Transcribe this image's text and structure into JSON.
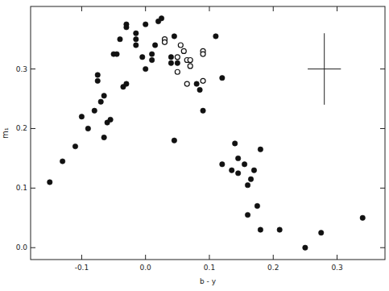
{
  "chart_data": {
    "type": "scatter",
    "x_label": "b - y",
    "y_label": "m₁",
    "xlim": [
      -0.18,
      0.375
    ],
    "ylim": [
      -0.02,
      0.405
    ],
    "xticks": [
      -0.1,
      {
        "value": 0,
        "label": "0.0"
      },
      0.1,
      0.2,
      0.3
    ],
    "yticks": [
      {
        "value": 0,
        "label": "0.0"
      },
      0.1,
      0.2,
      0.3
    ],
    "series": [
      {
        "color": "#111111",
        "marker": "circle-filled",
        "x": [
          -0.15,
          -0.13,
          -0.11,
          -0.1,
          -0.09,
          -0.08,
          -0.075,
          -0.075,
          -0.07,
          -0.065,
          -0.065,
          -0.06,
          -0.055,
          -0.05,
          -0.045,
          -0.04,
          -0.035,
          -0.03,
          -0.03,
          -0.03,
          -0.015,
          -0.015,
          -0.015,
          -0.005,
          0.0,
          0.0,
          0.01,
          0.01,
          0.015,
          0.02,
          0.025,
          0.04,
          0.04,
          0.045,
          0.05,
          0.045,
          0.08,
          0.085,
          0.09,
          0.11,
          0.12,
          0.12,
          0.135,
          0.14,
          0.145,
          0.145,
          0.155,
          0.16,
          0.16,
          0.165,
          0.17,
          0.175,
          0.18,
          0.18,
          0.21,
          0.25,
          0.275,
          0.34
        ],
        "values": [
          0.11,
          0.145,
          0.17,
          0.22,
          0.2,
          0.23,
          0.28,
          0.29,
          0.245,
          0.255,
          0.185,
          0.21,
          0.215,
          0.325,
          0.325,
          0.35,
          0.27,
          0.275,
          0.375,
          0.37,
          0.36,
          0.35,
          0.34,
          0.32,
          0.375,
          0.3,
          0.325,
          0.315,
          0.34,
          0.38,
          0.385,
          0.32,
          0.31,
          0.355,
          0.31,
          0.18,
          0.275,
          0.265,
          0.23,
          0.355,
          0.285,
          0.14,
          0.13,
          0.175,
          0.125,
          0.15,
          0.14,
          0.105,
          0.055,
          0.115,
          0.13,
          0.07,
          0.165,
          0.03,
          0.03,
          0.0,
          0.025,
          0.05
        ]
      },
      {
        "color": "#111111",
        "marker": "circle-open",
        "x": [
          0.03,
          0.03,
          0.05,
          0.05,
          0.055,
          0.06,
          0.065,
          0.07,
          0.065,
          0.07,
          0.09,
          0.09,
          0.09
        ],
        "values": [
          0.35,
          0.345,
          0.32,
          0.295,
          0.34,
          0.33,
          0.315,
          0.315,
          0.275,
          0.305,
          0.33,
          0.325,
          0.28
        ]
      }
    ],
    "error_cross": {
      "x": 0.28,
      "y": 0.3,
      "x_error": 0.026,
      "y_error": 0.06
    }
  }
}
